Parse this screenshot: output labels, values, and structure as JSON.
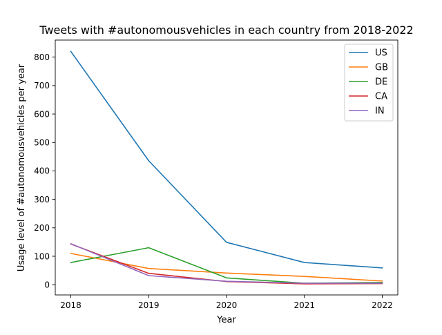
{
  "chart_data": {
    "type": "line",
    "title": "Tweets with #autonomousvehicles in each country from 2018-2022",
    "xlabel": "Year",
    "ylabel": "Usage level of #autonomousvehicles per year",
    "x": [
      2018,
      2019,
      2020,
      2021,
      2022
    ],
    "x_ticks": [
      "2018",
      "2019",
      "2020",
      "2021",
      "2022"
    ],
    "y_ticks": [
      0,
      100,
      200,
      300,
      400,
      500,
      600,
      700,
      800
    ],
    "xlim": [
      2017.8,
      2022.2
    ],
    "ylim": [
      -36,
      860
    ],
    "grid": false,
    "legend_position": "top-right",
    "series": [
      {
        "name": "US",
        "color": "#1f77b4",
        "values": [
          820,
          436,
          149,
          78,
          59
        ]
      },
      {
        "name": "GB",
        "color": "#ff7f0e",
        "values": [
          110,
          57,
          41,
          29,
          13
        ]
      },
      {
        "name": "DE",
        "color": "#2ca02c",
        "values": [
          78,
          130,
          24,
          5,
          8
        ]
      },
      {
        "name": "CA",
        "color": "#d62728",
        "values": [
          143,
          40,
          11,
          3,
          4
        ]
      },
      {
        "name": "IN",
        "color": "#9467bd",
        "values": [
          144,
          32,
          12,
          5,
          5
        ]
      }
    ]
  }
}
